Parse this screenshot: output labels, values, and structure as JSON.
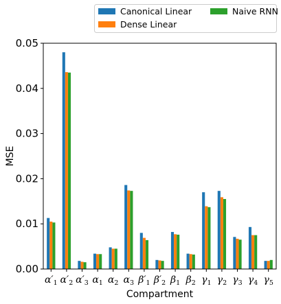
{
  "chart_data": {
    "type": "bar",
    "xlabel": "Compartment",
    "ylabel": "MSE",
    "ylim": [
      0,
      0.05
    ],
    "yticks": [
      "0.00",
      "0.01",
      "0.02",
      "0.03",
      "0.04",
      "0.05"
    ],
    "categories": [
      {
        "base": "α",
        "prime": true,
        "sub": "1"
      },
      {
        "base": "α",
        "prime": true,
        "sub": "2"
      },
      {
        "base": "α",
        "prime": true,
        "sub": "3"
      },
      {
        "base": "α",
        "prime": false,
        "sub": "1"
      },
      {
        "base": "α",
        "prime": false,
        "sub": "2"
      },
      {
        "base": "α",
        "prime": false,
        "sub": "3"
      },
      {
        "base": "β",
        "prime": true,
        "sub": "1"
      },
      {
        "base": "β",
        "prime": true,
        "sub": "2"
      },
      {
        "base": "β",
        "prime": false,
        "sub": "1"
      },
      {
        "base": "β",
        "prime": false,
        "sub": "2"
      },
      {
        "base": "γ",
        "prime": false,
        "sub": "1"
      },
      {
        "base": "γ",
        "prime": false,
        "sub": "2"
      },
      {
        "base": "γ",
        "prime": false,
        "sub": "3"
      },
      {
        "base": "γ",
        "prime": false,
        "sub": "4"
      },
      {
        "base": "γ",
        "prime": false,
        "sub": "5"
      }
    ],
    "series": [
      {
        "name": "Canonical Linear",
        "color": "#1f77b4",
        "values": [
          0.0113,
          0.048,
          0.0018,
          0.0034,
          0.0048,
          0.0186,
          0.008,
          0.002,
          0.0082,
          0.0034,
          0.017,
          0.0173,
          0.0071,
          0.0093,
          0.0018
        ]
      },
      {
        "name": "Dense Linear",
        "color": "#ff7f0e",
        "values": [
          0.0105,
          0.0436,
          0.0016,
          0.0033,
          0.0045,
          0.0174,
          0.0069,
          0.0019,
          0.0077,
          0.0033,
          0.0139,
          0.0159,
          0.0067,
          0.0075,
          0.0018
        ]
      },
      {
        "name": "Naive RNN",
        "color": "#2ca02c",
        "values": [
          0.0103,
          0.0435,
          0.0015,
          0.0033,
          0.0045,
          0.0173,
          0.0064,
          0.0018,
          0.0076,
          0.0032,
          0.0137,
          0.0155,
          0.0065,
          0.0075,
          0.002
        ]
      }
    ],
    "legend": {
      "placement": "top-right, above plot",
      "columns": 2
    },
    "grid": false
  }
}
